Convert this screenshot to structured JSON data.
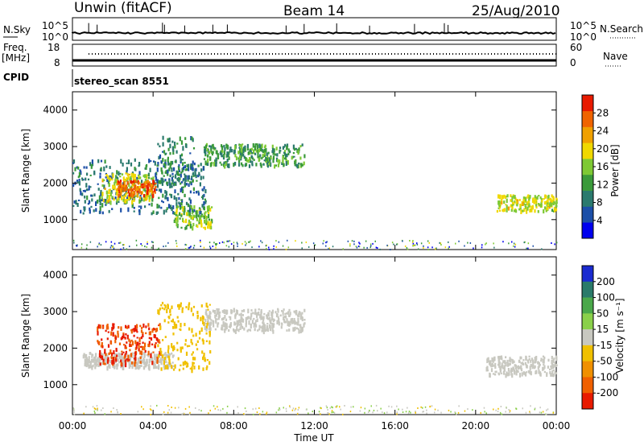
{
  "header": {
    "station": "Unwin (fitACF)",
    "beam": "Beam 14",
    "date": "25/Aug/2010"
  },
  "strip": {
    "nsky_label": "N.Sky",
    "nsearch_label": "N.Search",
    "left_ticks": [
      "10^5",
      "10^0"
    ],
    "right_ticks": [
      "10^5",
      "10^0"
    ],
    "freq_label_1": "Freq.",
    "freq_label_2": "[MHz]",
    "freq_ticks": [
      "18",
      "8"
    ],
    "nave_label": "Nave",
    "nave_ticks": [
      "60",
      "0"
    ],
    "cpid_label": "CPID",
    "cpid_value": "stereo_scan 8551"
  },
  "chart_data": [
    {
      "type": "heatmap",
      "panel": "power",
      "xlabel": "Time UT",
      "ylabel": "Slant Range [km]",
      "x_ticks": [
        "00:00",
        "04:00",
        "08:00",
        "12:00",
        "16:00",
        "20:00",
        "00:00"
      ],
      "x_range_hours": [
        0,
        24
      ],
      "y_ticks": [
        1000,
        2000,
        3000,
        4000
      ],
      "ylim": [
        180,
        4500
      ],
      "colorbar": {
        "label": "Power [dB]",
        "ticks": [
          4,
          8,
          12,
          16,
          20,
          24,
          28
        ],
        "range": [
          0,
          32
        ],
        "colors": [
          "#0000ee",
          "#1c4fa8",
          "#2b7a6e",
          "#3a9a3a",
          "#7ec934",
          "#f0d800",
          "#f0a000",
          "#f06400",
          "#e81a00"
        ]
      },
      "regions": [
        {
          "t": [
            0.0,
            6.6
          ],
          "r": [
            1200,
            2700
          ],
          "value": 8
        },
        {
          "t": [
            1.4,
            4.0
          ],
          "r": [
            1500,
            2300
          ],
          "value": 18
        },
        {
          "t": [
            2.2,
            4.1
          ],
          "r": [
            1700,
            2100
          ],
          "value": 27
        },
        {
          "t": [
            4.2,
            6.0
          ],
          "r": [
            2000,
            3300
          ],
          "value": 10
        },
        {
          "t": [
            5.0,
            6.9
          ],
          "r": [
            800,
            1400
          ],
          "value": 16
        },
        {
          "t": [
            6.5,
            11.5
          ],
          "r": [
            2500,
            3100
          ],
          "value": 12
        },
        {
          "t": [
            21.0,
            24.0
          ],
          "r": [
            1250,
            1700
          ],
          "value": 18
        }
      ]
    },
    {
      "type": "heatmap",
      "panel": "velocity",
      "xlabel": "Time UT",
      "ylabel": "Slant Range [km]",
      "x_ticks": [
        "00:00",
        "04:00",
        "08:00",
        "12:00",
        "16:00",
        "20:00",
        "00:00"
      ],
      "x_range_hours": [
        0,
        24
      ],
      "y_ticks": [
        1000,
        2000,
        3000,
        4000
      ],
      "ylim": [
        180,
        4500
      ],
      "colorbar": {
        "label": "Velocity [m s⁻¹]",
        "ticks": [
          200,
          100,
          50,
          15,
          -15,
          -50,
          -100,
          -200
        ],
        "colors": [
          "#1a2bd0",
          "#2a7a6a",
          "#4aa84a",
          "#8ad04a",
          "#c8c8c0",
          "#f0c000",
          "#f09000",
          "#f06000",
          "#e81a00"
        ]
      },
      "regions": [
        {
          "t": [
            0.5,
            5.0
          ],
          "r": [
            1500,
            1900
          ],
          "value": 0
        },
        {
          "t": [
            1.2,
            4.4
          ],
          "r": [
            1600,
            2700
          ],
          "value": -200
        },
        {
          "t": [
            4.2,
            6.8
          ],
          "r": [
            1400,
            3300
          ],
          "value": -30
        },
        {
          "t": [
            6.5,
            11.5
          ],
          "r": [
            2500,
            3100
          ],
          "value": 0
        },
        {
          "t": [
            20.5,
            24.0
          ],
          "r": [
            1300,
            1800
          ],
          "value": 0
        }
      ]
    }
  ]
}
